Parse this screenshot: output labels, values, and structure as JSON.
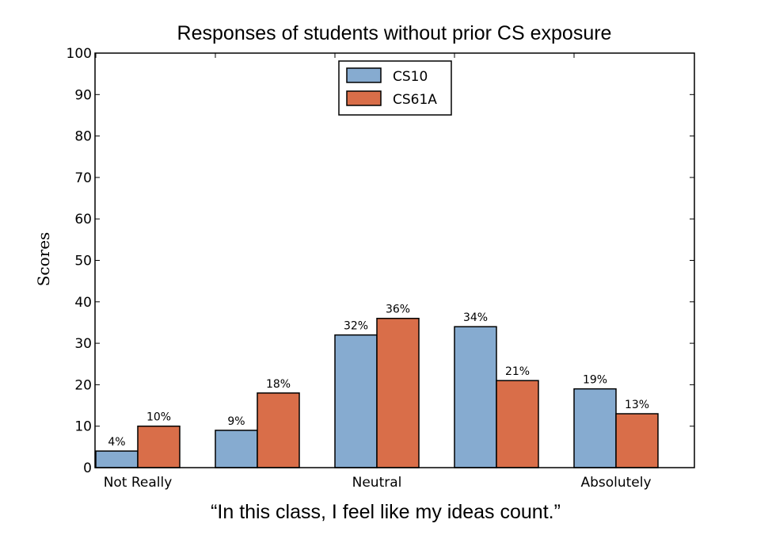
{
  "chart_data": {
    "type": "bar",
    "title": "Responses of students without prior CS exposure",
    "xlabel": "“In this class, I feel like my ideas count.”",
    "ylabel": "Scores",
    "ylim": [
      0,
      100
    ],
    "yticks": [
      "0",
      "10",
      "20",
      "30",
      "40",
      "50",
      "60",
      "70",
      "80",
      "90",
      "100"
    ],
    "category_labels": [
      "Not Really",
      "",
      "Neutral",
      "",
      "Absolutely"
    ],
    "groups": 5,
    "grid": false,
    "legend_position": "top-center",
    "series": [
      {
        "name": "CS10",
        "color": "#86abd0",
        "values": [
          4,
          9,
          32,
          34,
          19
        ],
        "labels": [
          "4%",
          "9%",
          "32%",
          "34%",
          "19%"
        ]
      },
      {
        "name": "CS61A",
        "color": "#d96e49",
        "values": [
          10,
          18,
          36,
          21,
          13
        ],
        "labels": [
          "10%",
          "18%",
          "36%",
          "21%",
          "13%"
        ]
      }
    ]
  }
}
